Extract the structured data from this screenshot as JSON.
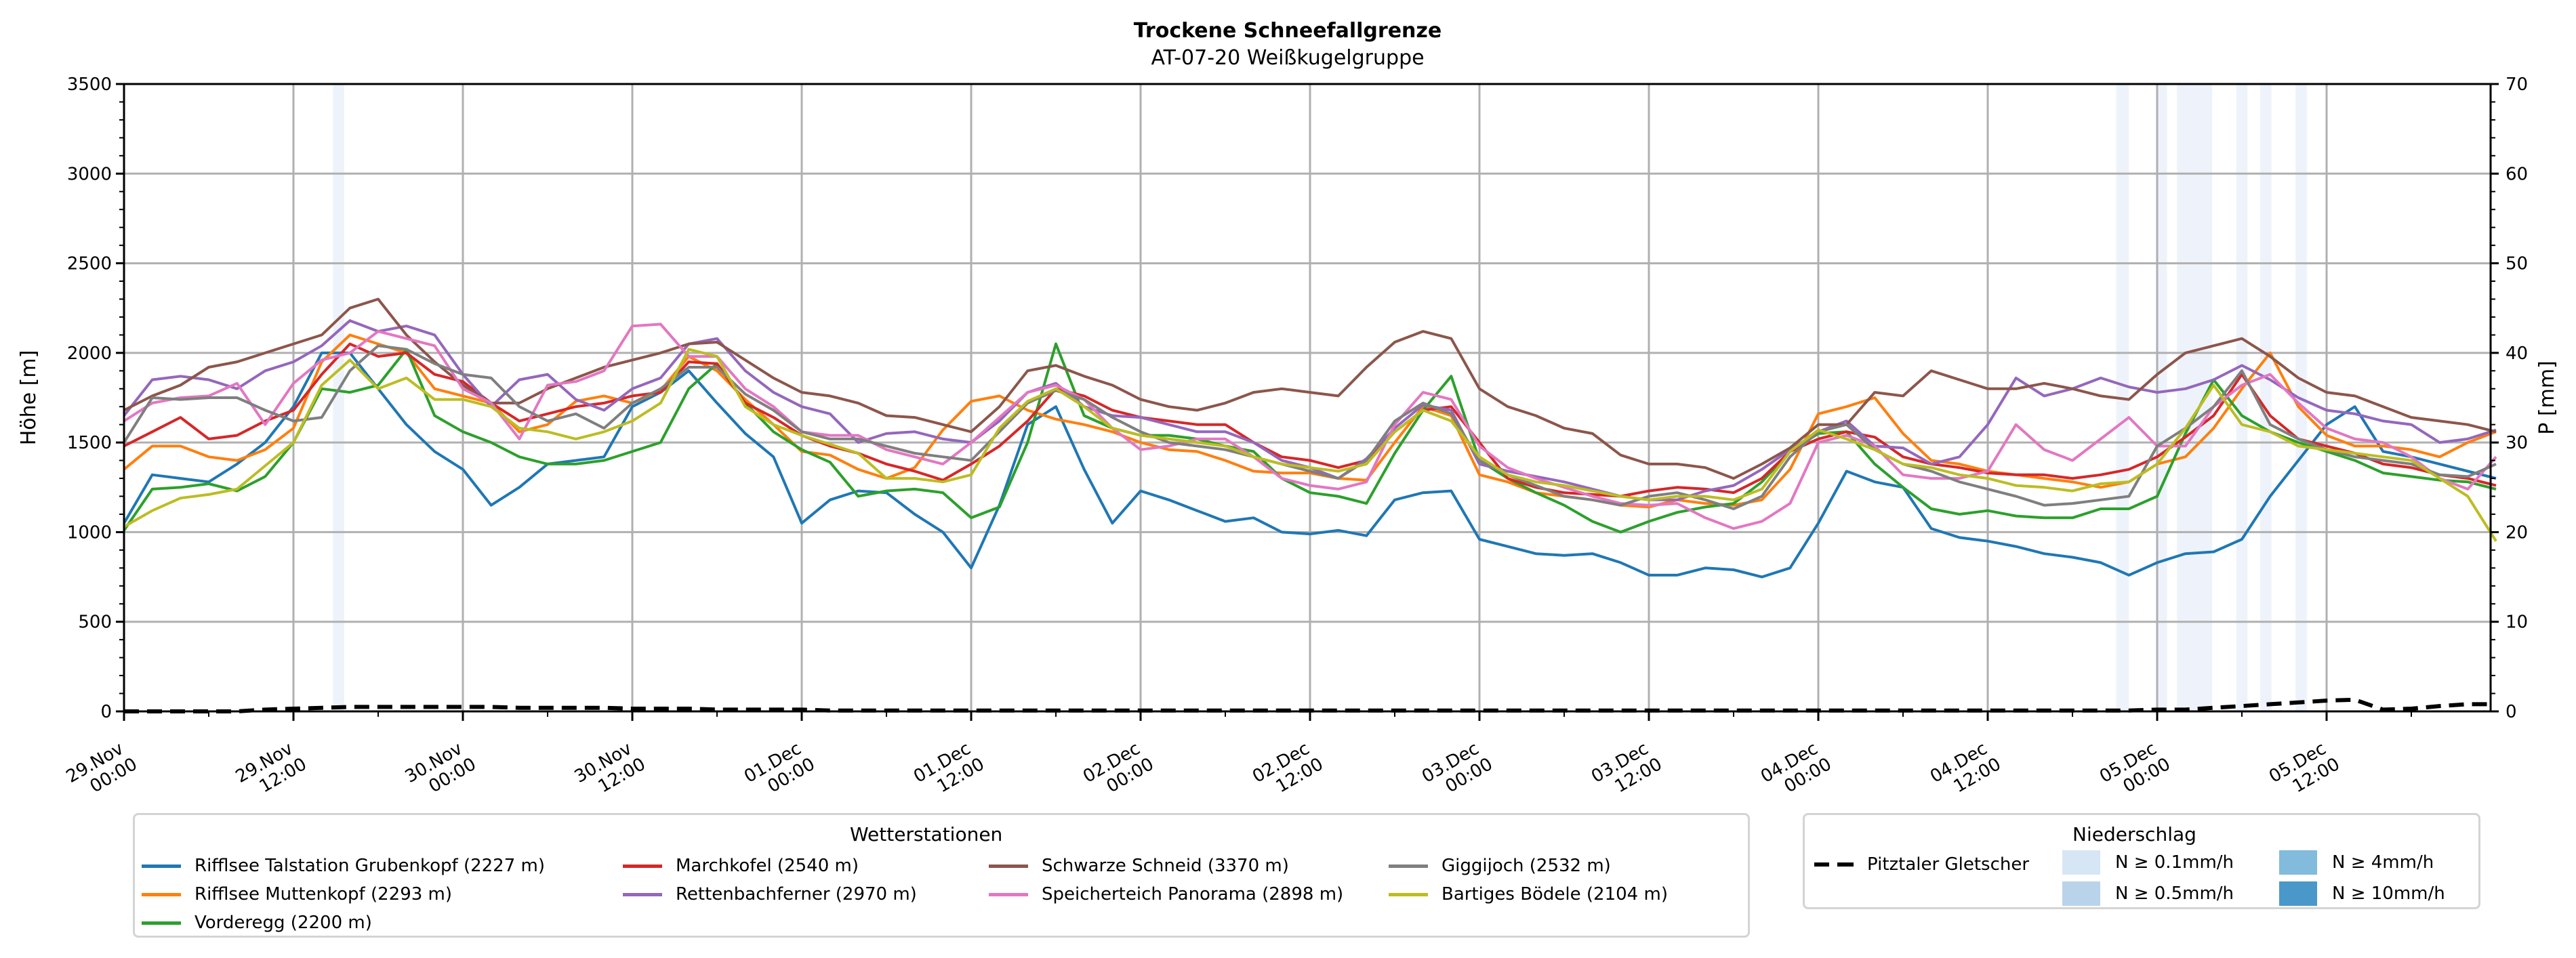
{
  "chart_data": {
    "type": "line",
    "title": "Trockene Schneefallgrenze",
    "subtitle": "AT-07-20 Weißkugelgruppe",
    "ylabel": "Höhe [m]",
    "ylabel_right": "P [mm]",
    "ylim": [
      0,
      3500
    ],
    "ylim_right": [
      0,
      70
    ],
    "yticks": [
      "0",
      "500",
      "1000",
      "1500",
      "2000",
      "2500",
      "3000",
      "3500"
    ],
    "yticks_right": [
      "0",
      "10",
      "20",
      "30",
      "40",
      "50",
      "60",
      "70"
    ],
    "grid": true,
    "x_unit": "hours since 29.Nov 00:00",
    "x_step_hours": 2,
    "xlim_hours": [
      0,
      167
    ],
    "xticks": [
      {
        "line1": "29.Nov",
        "line2": "00:00",
        "hour": 0
      },
      {
        "line1": "29.Nov",
        "line2": "12:00",
        "hour": 12
      },
      {
        "line1": "30.Nov",
        "line2": "00:00",
        "hour": 24
      },
      {
        "line1": "30.Nov",
        "line2": "12:00",
        "hour": 36
      },
      {
        "line1": "01.Dec",
        "line2": "00:00",
        "hour": 48
      },
      {
        "line1": "01.Dec",
        "line2": "12:00",
        "hour": 60
      },
      {
        "line1": "02.Dec",
        "line2": "00:00",
        "hour": 72
      },
      {
        "line1": "02.Dec",
        "line2": "12:00",
        "hour": 84
      },
      {
        "line1": "03.Dec",
        "line2": "00:00",
        "hour": 96
      },
      {
        "line1": "03.Dec",
        "line2": "12:00",
        "hour": 108
      },
      {
        "line1": "04.Dec",
        "line2": "00:00",
        "hour": 120
      },
      {
        "line1": "04.Dec",
        "line2": "12:00",
        "hour": 132
      },
      {
        "line1": "05.Dec",
        "line2": "00:00",
        "hour": 144
      },
      {
        "line1": "05.Dec",
        "line2": "12:00",
        "hour": 156
      }
    ],
    "legend_stations": {
      "title": "Wetterstationen",
      "placement": "bottom-left"
    },
    "series": [
      {
        "name": "Rifflsee Talstation Grubenkopf (2227 m)",
        "color": "#1f77b4",
        "values": [
          1050,
          1320,
          1300,
          1280,
          1380,
          1500,
          1700,
          2000,
          2000,
          1800,
          1600,
          1450,
          1350,
          1150,
          1250,
          1380,
          1400,
          1420,
          1700,
          1780,
          1900,
          1720,
          1550,
          1420,
          1050,
          1180,
          1230,
          1220,
          1100,
          1000,
          800,
          1150,
          1600,
          1700,
          1350,
          1050,
          1230,
          1180,
          1120,
          1060,
          1080,
          1000,
          990,
          1010,
          980,
          1180,
          1220,
          1230,
          960,
          920,
          880,
          870,
          880,
          830,
          760,
          760,
          800,
          790,
          750,
          800,
          1050,
          1340,
          1280,
          1250,
          1020,
          970,
          950,
          920,
          880,
          860,
          830,
          760,
          830,
          880,
          890,
          960,
          1200,
          1400,
          1600,
          1700,
          1450,
          1420,
          1380,
          1340,
          1300
        ]
      },
      {
        "name": "Rifflsee Muttenkopf (2293 m)",
        "color": "#ff7f0e",
        "values": [
          1350,
          1480,
          1480,
          1420,
          1400,
          1460,
          1580,
          1950,
          2100,
          2050,
          2000,
          1800,
          1760,
          1720,
          1560,
          1600,
          1730,
          1760,
          1720,
          1790,
          1980,
          1900,
          1740,
          1600,
          1450,
          1430,
          1350,
          1300,
          1360,
          1570,
          1730,
          1760,
          1680,
          1630,
          1600,
          1560,
          1500,
          1460,
          1450,
          1400,
          1340,
          1330,
          1330,
          1300,
          1290,
          1500,
          1700,
          1650,
          1320,
          1280,
          1220,
          1200,
          1180,
          1150,
          1140,
          1180,
          1160,
          1150,
          1180,
          1350,
          1660,
          1700,
          1750,
          1550,
          1400,
          1380,
          1340,
          1320,
          1300,
          1280,
          1250,
          1280,
          1380,
          1420,
          1580,
          1800,
          2000,
          1700,
          1540,
          1480,
          1480,
          1460,
          1420,
          1500,
          1560
        ]
      },
      {
        "name": "Vorderegg (2200 m)",
        "color": "#2ca02c",
        "values": [
          1010,
          1240,
          1250,
          1270,
          1230,
          1310,
          1500,
          1800,
          1780,
          1820,
          2020,
          1650,
          1560,
          1500,
          1420,
          1380,
          1380,
          1400,
          1450,
          1500,
          1800,
          1940,
          1720,
          1560,
          1460,
          1390,
          1200,
          1230,
          1240,
          1220,
          1080,
          1140,
          1500,
          2050,
          1650,
          1580,
          1540,
          1540,
          1520,
          1480,
          1450,
          1300,
          1220,
          1200,
          1160,
          1440,
          1680,
          1870,
          1400,
          1300,
          1220,
          1150,
          1060,
          1000,
          1060,
          1110,
          1140,
          1160,
          1280,
          1450,
          1550,
          1560,
          1380,
          1250,
          1130,
          1100,
          1120,
          1090,
          1080,
          1080,
          1130,
          1130,
          1200,
          1550,
          1850,
          1650,
          1560,
          1500,
          1450,
          1400,
          1330,
          1310,
          1290,
          1280,
          1240
        ]
      },
      {
        "name": "Marchkofel (2540 m)",
        "color": "#d62728",
        "values": [
          1480,
          1560,
          1640,
          1520,
          1540,
          1620,
          1680,
          1880,
          2050,
          1980,
          2000,
          1880,
          1840,
          1720,
          1620,
          1660,
          1700,
          1720,
          1760,
          1780,
          1950,
          1940,
          1720,
          1640,
          1540,
          1480,
          1440,
          1380,
          1340,
          1290,
          1380,
          1480,
          1620,
          1800,
          1760,
          1680,
          1640,
          1620,
          1600,
          1600,
          1500,
          1420,
          1400,
          1360,
          1400,
          1560,
          1680,
          1700,
          1500,
          1300,
          1250,
          1220,
          1210,
          1200,
          1230,
          1250,
          1240,
          1220,
          1300,
          1450,
          1520,
          1560,
          1530,
          1420,
          1380,
          1360,
          1330,
          1320,
          1320,
          1300,
          1320,
          1350,
          1420,
          1530,
          1650,
          1880,
          1650,
          1520,
          1480,
          1440,
          1380,
          1360,
          1320,
          1300,
          1260
        ]
      },
      {
        "name": "Rettenbachferner (2970 m)",
        "color": "#9467bd",
        "values": [
          1650,
          1850,
          1870,
          1850,
          1800,
          1900,
          1950,
          2040,
          2180,
          2120,
          2150,
          2100,
          1880,
          1700,
          1850,
          1880,
          1740,
          1680,
          1800,
          1860,
          2050,
          2080,
          1900,
          1780,
          1700,
          1660,
          1500,
          1550,
          1560,
          1520,
          1500,
          1620,
          1780,
          1830,
          1700,
          1650,
          1640,
          1600,
          1560,
          1560,
          1500,
          1400,
          1360,
          1300,
          1410,
          1580,
          1710,
          1680,
          1380,
          1340,
          1310,
          1280,
          1240,
          1200,
          1180,
          1180,
          1230,
          1260,
          1350,
          1460,
          1560,
          1620,
          1480,
          1470,
          1380,
          1420,
          1600,
          1860,
          1760,
          1800,
          1860,
          1810,
          1780,
          1800,
          1850,
          1930,
          1850,
          1750,
          1680,
          1660,
          1620,
          1600,
          1500,
          1520,
          1570
        ]
      },
      {
        "name": "Schwarze Schneid (3370 m)",
        "color": "#8c564b",
        "values": [
          1680,
          1760,
          1820,
          1920,
          1950,
          2000,
          2050,
          2100,
          2250,
          2300,
          2100,
          1950,
          1820,
          1720,
          1720,
          1800,
          1860,
          1920,
          1960,
          2000,
          2050,
          2060,
          1960,
          1860,
          1780,
          1760,
          1720,
          1650,
          1640,
          1600,
          1560,
          1700,
          1900,
          1930,
          1870,
          1820,
          1740,
          1700,
          1680,
          1720,
          1780,
          1800,
          1780,
          1760,
          1920,
          2060,
          2120,
          2080,
          1800,
          1700,
          1650,
          1580,
          1550,
          1430,
          1380,
          1380,
          1360,
          1300,
          1380,
          1470,
          1600,
          1600,
          1780,
          1760,
          1900,
          1850,
          1800,
          1800,
          1830,
          1800,
          1760,
          1740,
          1880,
          2000,
          2040,
          2080,
          1980,
          1860,
          1780,
          1760,
          1700,
          1640,
          1620,
          1600,
          1560
        ]
      },
      {
        "name": "Speicherteich Panorama (2898 m)",
        "color": "#e377c2",
        "values": [
          1620,
          1720,
          1750,
          1760,
          1830,
          1600,
          1830,
          1960,
          2000,
          2120,
          2080,
          2040,
          1800,
          1720,
          1520,
          1820,
          1840,
          1900,
          2150,
          2160,
          1980,
          1980,
          1800,
          1700,
          1560,
          1540,
          1540,
          1460,
          1420,
          1380,
          1500,
          1640,
          1780,
          1820,
          1740,
          1580,
          1460,
          1480,
          1520,
          1520,
          1420,
          1300,
          1260,
          1240,
          1280,
          1600,
          1780,
          1740,
          1480,
          1360,
          1300,
          1250,
          1200,
          1160,
          1150,
          1160,
          1080,
          1020,
          1060,
          1160,
          1500,
          1540,
          1480,
          1320,
          1300,
          1300,
          1340,
          1600,
          1460,
          1400,
          1520,
          1640,
          1480,
          1480,
          1700,
          1820,
          1880,
          1720,
          1580,
          1520,
          1500,
          1420,
          1300,
          1240,
          1420
        ]
      },
      {
        "name": "Giggijoch (2532 m)",
        "color": "#7f7f7f",
        "values": [
          1500,
          1750,
          1740,
          1750,
          1750,
          1680,
          1620,
          1640,
          1900,
          2040,
          2020,
          1940,
          1880,
          1860,
          1700,
          1620,
          1660,
          1580,
          1720,
          1800,
          1920,
          1920,
          1770,
          1680,
          1560,
          1520,
          1520,
          1480,
          1440,
          1420,
          1400,
          1560,
          1720,
          1790,
          1740,
          1640,
          1560,
          1500,
          1480,
          1460,
          1420,
          1380,
          1340,
          1300,
          1400,
          1620,
          1720,
          1660,
          1400,
          1320,
          1260,
          1200,
          1180,
          1150,
          1200,
          1220,
          1180,
          1130,
          1200,
          1420,
          1560,
          1600,
          1460,
          1380,
          1340,
          1280,
          1240,
          1200,
          1150,
          1160,
          1180,
          1200,
          1480,
          1580,
          1700,
          1900,
          1600,
          1520,
          1460,
          1420,
          1400,
          1380,
          1320,
          1310,
          1380
        ]
      },
      {
        "name": "Bartiges Bödele (2104 m)",
        "color": "#bcbd22",
        "values": [
          1030,
          1120,
          1190,
          1210,
          1240,
          1370,
          1500,
          1820,
          1960,
          1800,
          1860,
          1740,
          1740,
          1700,
          1580,
          1560,
          1520,
          1560,
          1620,
          1720,
          2020,
          1980,
          1700,
          1600,
          1540,
          1490,
          1440,
          1300,
          1300,
          1280,
          1320,
          1580,
          1730,
          1800,
          1700,
          1580,
          1540,
          1520,
          1500,
          1480,
          1420,
          1380,
          1360,
          1340,
          1380,
          1560,
          1680,
          1620,
          1420,
          1320,
          1280,
          1260,
          1230,
          1200,
          1180,
          1200,
          1200,
          1180,
          1240,
          1450,
          1570,
          1520,
          1460,
          1380,
          1360,
          1320,
          1300,
          1260,
          1250,
          1230,
          1270,
          1280,
          1380,
          1580,
          1820,
          1600,
          1560,
          1480,
          1460,
          1440,
          1420,
          1400,
          1300,
          1200,
          950
        ]
      }
    ],
    "precip_series": {
      "name": "Pitztaler Gletscher",
      "style": "dashed",
      "color": "#000000",
      "values_mm": [
        0,
        0,
        0,
        0,
        0,
        0.2,
        0.3,
        0.4,
        0.5,
        0.5,
        0.5,
        0.5,
        0.5,
        0.5,
        0.4,
        0.4,
        0.4,
        0.4,
        0.3,
        0.3,
        0.3,
        0.2,
        0.2,
        0.2,
        0.2,
        0.1,
        0.1,
        0.1,
        0.1,
        0.1,
        0.1,
        0.1,
        0.1,
        0.1,
        0.1,
        0.1,
        0.1,
        0.1,
        0.1,
        0.1,
        0.1,
        0.1,
        0.1,
        0.1,
        0.1,
        0.1,
        0.1,
        0.1,
        0.1,
        0.1,
        0.1,
        0.1,
        0.1,
        0.1,
        0.1,
        0.1,
        0.1,
        0.1,
        0.1,
        0.1,
        0.1,
        0.1,
        0.1,
        0.1,
        0.1,
        0.1,
        0.1,
        0.1,
        0.1,
        0.1,
        0.1,
        0.1,
        0.2,
        0.2,
        0.4,
        0.6,
        0.8,
        1.0,
        1.2,
        1.3,
        0.2,
        0.3,
        0.6,
        0.8,
        0.8
      ]
    },
    "precip_bands": [
      {
        "start_hour": 14.8,
        "end_hour": 15.6,
        "class": "N ≥ 0.1mm/h"
      },
      {
        "start_hour": 141.1,
        "end_hour": 142.0,
        "class": "N ≥ 0.1mm/h"
      },
      {
        "start_hour": 143.9,
        "end_hour": 144.7,
        "class": "N ≥ 0.1mm/h"
      },
      {
        "start_hour": 145.4,
        "end_hour": 147.9,
        "class": "N ≥ 0.1mm/h"
      },
      {
        "start_hour": 149.6,
        "end_hour": 150.4,
        "class": "N ≥ 0.1mm/h"
      },
      {
        "start_hour": 151.3,
        "end_hour": 152.1,
        "class": "N ≥ 0.1mm/h"
      },
      {
        "start_hour": 153.8,
        "end_hour": 154.6,
        "class": "N ≥ 0.1mm/h"
      }
    ],
    "legend_precip": {
      "title": "Niederschlag",
      "line_label": "Pitztaler Gletscher",
      "classes": [
        {
          "label": "N ≥ 0.1mm/h",
          "color": "#d6e6f4"
        },
        {
          "label": "N ≥ 0.5mm/h",
          "color": "#b9d4ea"
        },
        {
          "label": "N ≥ 4mm/h",
          "color": "#82bbdb"
        },
        {
          "label": "N ≥ 10mm/h",
          "color": "#4a98c9"
        }
      ],
      "band_color": "#eef3fb",
      "placement": "bottom-right"
    }
  }
}
